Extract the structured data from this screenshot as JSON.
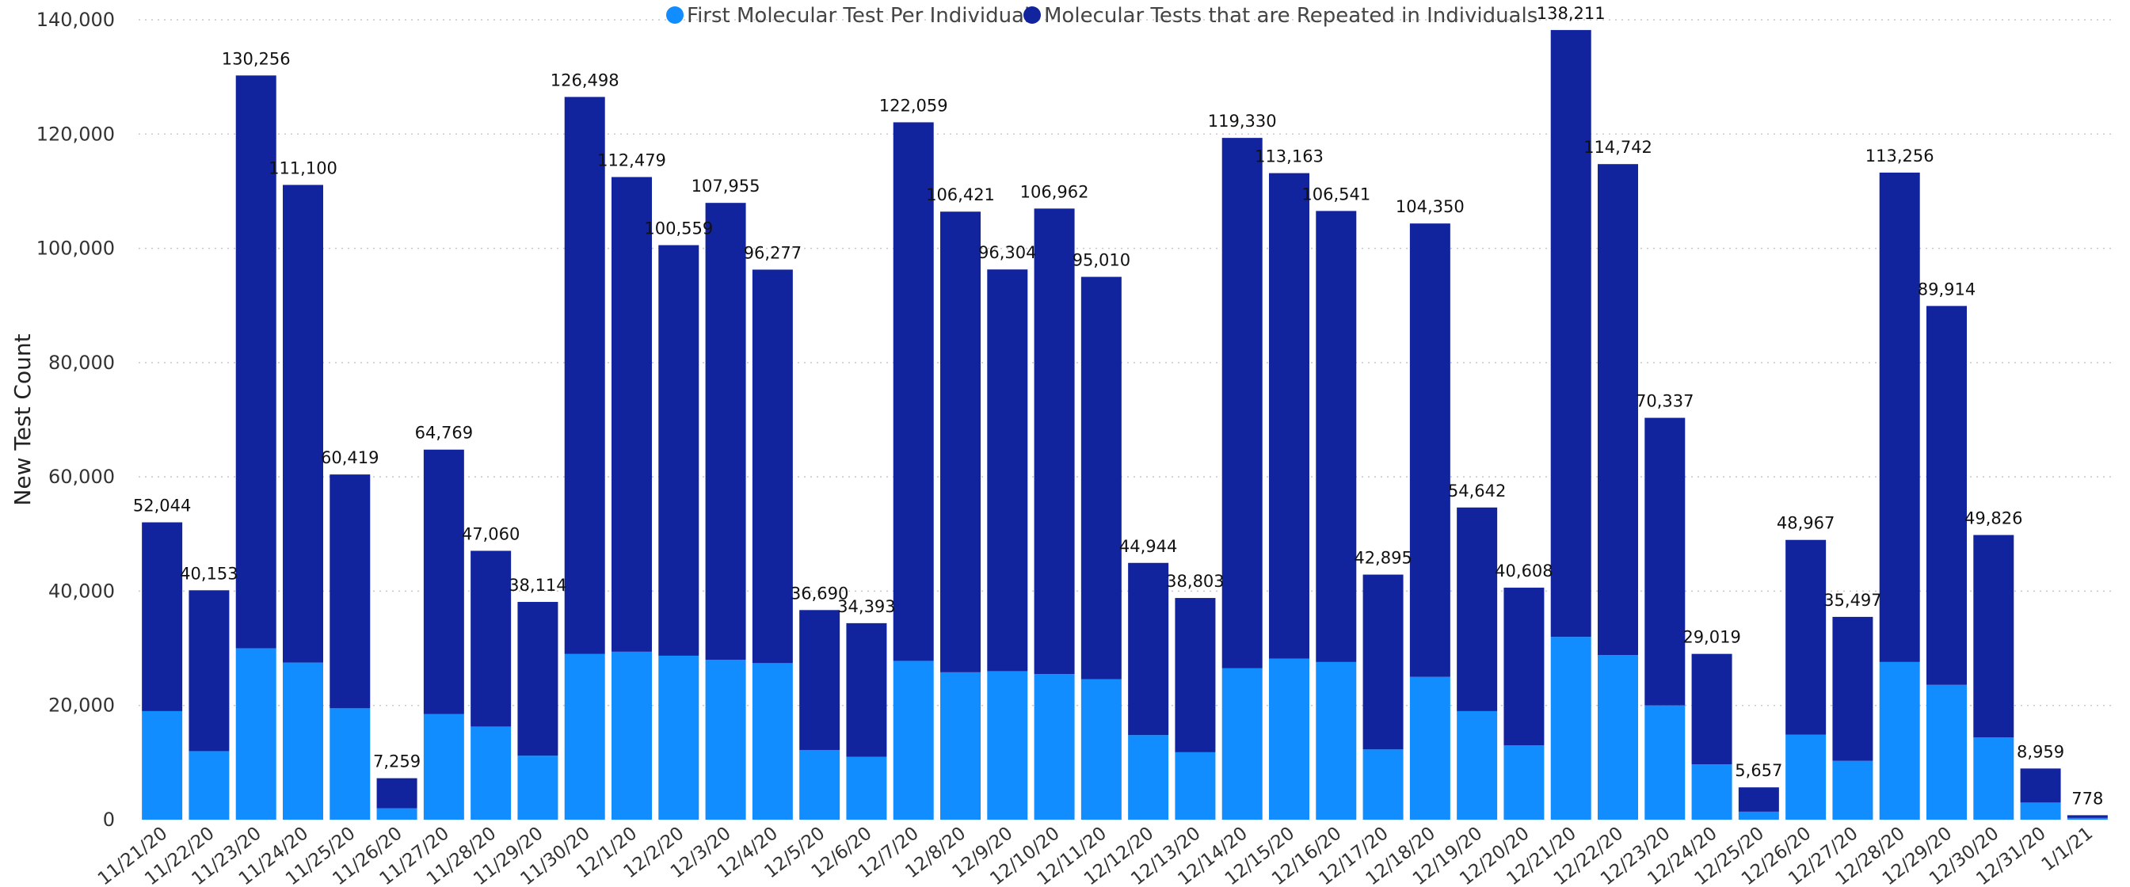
{
  "chart_data": {
    "type": "bar",
    "stacked": true,
    "ylabel": "New Test Count",
    "ylim": [
      0,
      140000
    ],
    "yticks": [
      0,
      20000,
      40000,
      60000,
      80000,
      100000,
      120000,
      140000
    ],
    "ytick_labels": [
      "0",
      "20,000",
      "40,000",
      "60,000",
      "80,000",
      "100,000",
      "120,000",
      "140,000"
    ],
    "grid": true,
    "legend_position": "top-center",
    "categories": [
      "11/21/20",
      "11/22/20",
      "11/23/20",
      "11/24/20",
      "11/25/20",
      "11/26/20",
      "11/27/20",
      "11/28/20",
      "11/29/20",
      "11/30/20",
      "12/1/20",
      "12/2/20",
      "12/3/20",
      "12/4/20",
      "12/5/20",
      "12/6/20",
      "12/7/20",
      "12/8/20",
      "12/9/20",
      "12/10/20",
      "12/11/20",
      "12/12/20",
      "12/13/20",
      "12/14/20",
      "12/15/20",
      "12/16/20",
      "12/17/20",
      "12/18/20",
      "12/19/20",
      "12/20/20",
      "12/21/20",
      "12/22/20",
      "12/23/20",
      "12/24/20",
      "12/25/20",
      "12/26/20",
      "12/27/20",
      "12/28/20",
      "12/29/20",
      "12/30/20",
      "12/31/20",
      "1/1/21"
    ],
    "series": [
      {
        "name": "First Molecular Test Per Individual",
        "color": "#118DFF",
        "values": [
          19000,
          12000,
          30000,
          27500,
          19500,
          2000,
          18500,
          16300,
          11200,
          29000,
          29400,
          28700,
          28000,
          27400,
          12200,
          11000,
          27800,
          25800,
          26000,
          25500,
          24600,
          14800,
          11800,
          26500,
          28200,
          27600,
          12300,
          25000,
          19000,
          13000,
          32000,
          28800,
          20000,
          9700,
          1400,
          14900,
          10300,
          27600,
          23600,
          14400,
          3000,
          300
        ]
      },
      {
        "name": "Molecular Tests that are Repeated in Individuals",
        "color": "#12239E",
        "values": [
          33044,
          28153,
          100256,
          83600,
          40919,
          5259,
          46269,
          30760,
          26914,
          97498,
          83079,
          71859,
          79955,
          68877,
          24490,
          23393,
          94259,
          80621,
          70304,
          81462,
          70410,
          30144,
          27003,
          92830,
          84963,
          78941,
          30595,
          79350,
          35642,
          27608,
          106211,
          85942,
          50337,
          19319,
          4257,
          34067,
          25197,
          85656,
          66314,
          35426,
          5959,
          478
        ]
      }
    ],
    "totals": [
      52044,
      40153,
      130256,
      111100,
      60419,
      7259,
      64769,
      47060,
      38114,
      126498,
      112479,
      100559,
      107955,
      96277,
      36690,
      34393,
      122059,
      106421,
      96304,
      106962,
      95010,
      44944,
      38803,
      119330,
      113163,
      106541,
      42895,
      104350,
      54642,
      40608,
      138211,
      114742,
      70337,
      29019,
      5657,
      48967,
      35497,
      113256,
      89914,
      49826,
      8959,
      778
    ],
    "total_labels": [
      "52,044",
      "40,153",
      "130,256",
      "111,100",
      "60,419",
      "7,259",
      "64,769",
      "47,060",
      "38,114",
      "126,498",
      "112,479",
      "100,559",
      "107,955",
      "96,277",
      "36,690",
      "34,393",
      "122,059",
      "106,421",
      "96,304",
      "106,962",
      "95,010",
      "44,944",
      "38,803",
      "119,330",
      "113,163",
      "106,541",
      "42,895",
      "104,350",
      "54,642",
      "40,608",
      "138,211",
      "114,742",
      "70,337",
      "29,019",
      "5,657",
      "48,967",
      "35,497",
      "113,256",
      "89,914",
      "49,826",
      "8,959",
      "778"
    ]
  }
}
